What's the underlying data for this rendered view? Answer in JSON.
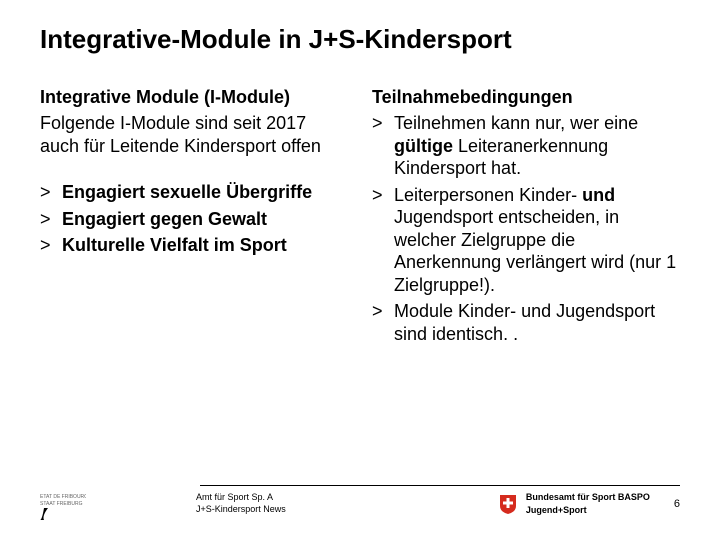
{
  "title": "Integrative-Module in J+S-Kindersport",
  "left": {
    "heading": "Integrative Module (I-Module)",
    "intro": "Folgende I-Module sind seit 2017 auch für Leitende Kindersport offen",
    "items": [
      "Engagiert sexuelle Übergriffe",
      "Engagiert gegen Gewalt",
      "Kulturelle Vielfalt im Sport"
    ]
  },
  "right": {
    "heading": "Teilnahmebedingungen",
    "bullets": [
      {
        "segments": [
          {
            "t": "Teilnehmen kann nur, wer eine ",
            "b": false
          },
          {
            "t": "gültige ",
            "b": true
          },
          {
            "t": "Leiteranerkennung Kindersport hat.",
            "b": false
          }
        ]
      },
      {
        "segments": [
          {
            "t": "Leiterpersonen Kinder- ",
            "b": false
          },
          {
            "t": "und ",
            "b": true
          },
          {
            "t": "Jugendsport entscheiden, in welcher Zielgruppe die Anerkennung verlängert wird (nur 1 Zielgruppe!).",
            "b": false
          }
        ]
      },
      {
        "segments": [
          {
            "t": "Module Kinder- und Jugendsport sind identisch. .",
            "b": false
          }
        ]
      }
    ]
  },
  "footer": {
    "mid_line1": "Amt für Sport Sp. A",
    "mid_line2": "J+S-Kindersport News",
    "right_line1": "Bundesamt für Sport BASPO",
    "right_line2": "Jugend+Sport",
    "page": "6"
  },
  "style": {
    "title_fontsize": 26,
    "body_fontsize": 18,
    "footer_fontsize": 9,
    "swiss_red": "#d52b1e",
    "text_color": "#000000",
    "background": "#ffffff"
  }
}
